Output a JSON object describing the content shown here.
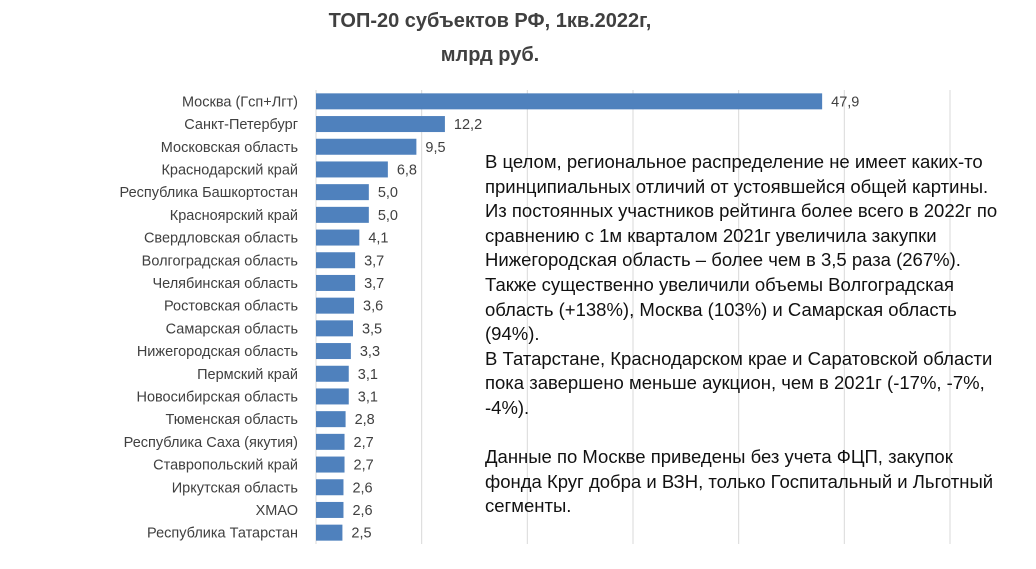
{
  "chart_data": {
    "type": "bar",
    "orientation": "horizontal",
    "title_line1": "ТОП-20 субъектов РФ, 1кв.2022г,",
    "title_line2": "млрд руб.",
    "categories": [
      "Москва (Гсп+Лгт)",
      "Санкт-Петербург",
      "Московская область",
      "Краснодарский край",
      "Республика Башкортостан",
      "Красноярский край",
      "Свердловская область",
      "Волгоградская область",
      "Челябинская область",
      "Ростовская область",
      "Самарская область",
      "Нижегородская область",
      "Пермский край",
      "Новосибирская область",
      "Тюменская область",
      "Республика Саха (якутия)",
      "Ставропольский край",
      "Иркутская область",
      "ХМАО",
      "Республика Татарстан"
    ],
    "values": [
      47.9,
      12.2,
      9.5,
      6.8,
      5.0,
      5.0,
      4.1,
      3.7,
      3.7,
      3.6,
      3.5,
      3.3,
      3.1,
      3.1,
      2.8,
      2.7,
      2.7,
      2.6,
      2.6,
      2.5
    ],
    "labels": [
      "47,9",
      "12,2",
      "9,5",
      "6,8",
      "5,0",
      "5,0",
      "4,1",
      "3,7",
      "3,7",
      "3,6",
      "3,5",
      "3,3",
      "3,1",
      "3,1",
      "2,8",
      "2,7",
      "2,7",
      "2,6",
      "2,6",
      "2,5"
    ],
    "xlim": [
      0,
      60
    ],
    "grid": true,
    "bar_color": "#4f81bd"
  },
  "note": {
    "p1": "В целом, региональное распределение не имеет каких-то принципиальных отличий от устоявшейся общей картины.",
    "p2": "Из постоянных участников рейтинга более всего в 2022г по сравнению с 1м кварталом 2021г увеличила закупки Нижегородская область – более чем в 3,5 раза (267%). Также существенно увеличили объемы Волгоградская область (+138%), Москва (103%) и Самарская область (94%).",
    "p3": "В Татарстане, Краснодарском крае и Саратовской области пока  завершено меньше аукцион, чем в 2021г (-17%, -7%, -4%).",
    "p4": "Данные по Москве приведены без учета ФЦП, закупок фонда Круг добра и ВЗН, только Госпитальный и Льготный сегменты."
  }
}
